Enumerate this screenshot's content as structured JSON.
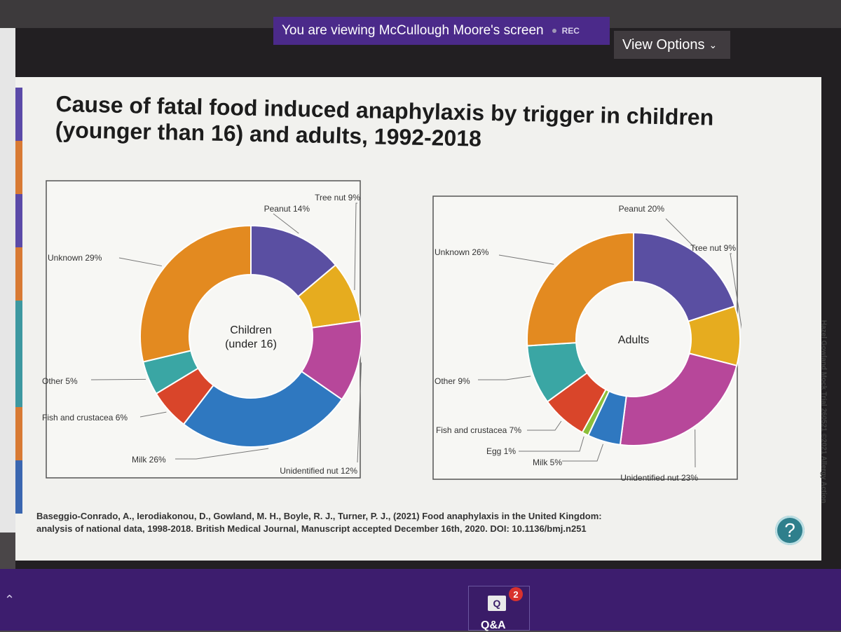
{
  "screen_share": {
    "banner_text": "You are viewing McCullough Moore's screen",
    "rec_label": "REC",
    "view_options_label": "View Options",
    "chevron_icon": "chevron-down-icon"
  },
  "slide": {
    "title": "Cause of fatal food induced anaphylaxis by trigger in children (younger than 16) and adults, 1992-2018",
    "citation_line1": "Baseggio-Conrado, A., Ierodiakonou, D., Gowland, M. H., Boyle, R. J., Turner, P. J., (2021) Food anaphylaxis in the United Kingdom:",
    "citation_line2": "analysis of national data, 1998-2018. British Medical Journal, Manuscript accepted December 16th, 2020. DOI: 10.1136/bmj.n251",
    "side_credit": "Hazel Gowland Mock Trial 260521 ©2021 Allergy Action",
    "stripe_colors": [
      "#5b4aa8",
      "#d87a34",
      "#5b4aa8",
      "#d87a34",
      "#3d98a0",
      "#3d98a0",
      "#d87a34",
      "#3a66b0"
    ]
  },
  "chart_data": [
    {
      "type": "pie",
      "center_label": "Children\n(under 16)",
      "slices": [
        {
          "label": "Peanut 14%",
          "value": 14,
          "color": "#5a4fa2"
        },
        {
          "label": "Tree nut 9%",
          "value": 9,
          "color": "#e6ac1f"
        },
        {
          "label": "Unidentified nut 12%",
          "value": 12,
          "color": "#b7479a"
        },
        {
          "label": "Milk 26%",
          "value": 26,
          "color": "#2f78c0"
        },
        {
          "label": "Fish and crustacea 6%",
          "value": 6,
          "color": "#d9452a"
        },
        {
          "label": "Other 5%",
          "value": 5,
          "color": "#3aa6a4"
        },
        {
          "label": "Unknown 29%",
          "value": 29,
          "color": "#e38a20"
        }
      ]
    },
    {
      "type": "pie",
      "center_label": "Adults",
      "slices": [
        {
          "label": "Peanut 20%",
          "value": 20,
          "color": "#5a4fa2"
        },
        {
          "label": "Tree nut 9%",
          "value": 9,
          "color": "#e6ac1f"
        },
        {
          "label": "Unidentified nut 23%",
          "value": 23,
          "color": "#b7479a"
        },
        {
          "label": "Milk 5%",
          "value": 5,
          "color": "#2f78c0"
        },
        {
          "label": "Egg 1%",
          "value": 1,
          "color": "#8cbf3a"
        },
        {
          "label": "Fish and crustacea 7%",
          "value": 7,
          "color": "#d9452a"
        },
        {
          "label": "Other 9%",
          "value": 9,
          "color": "#3aa6a4"
        },
        {
          "label": "Unknown 26%",
          "value": 26,
          "color": "#e38a20"
        }
      ]
    }
  ],
  "toolbar": {
    "qa_label": "Q&A",
    "qa_icon_glyph": "Q",
    "qa_badge_count": "2",
    "help_glyph": "?",
    "help_icon": "help-icon",
    "collapse_icon": "chevron-up-icon"
  }
}
